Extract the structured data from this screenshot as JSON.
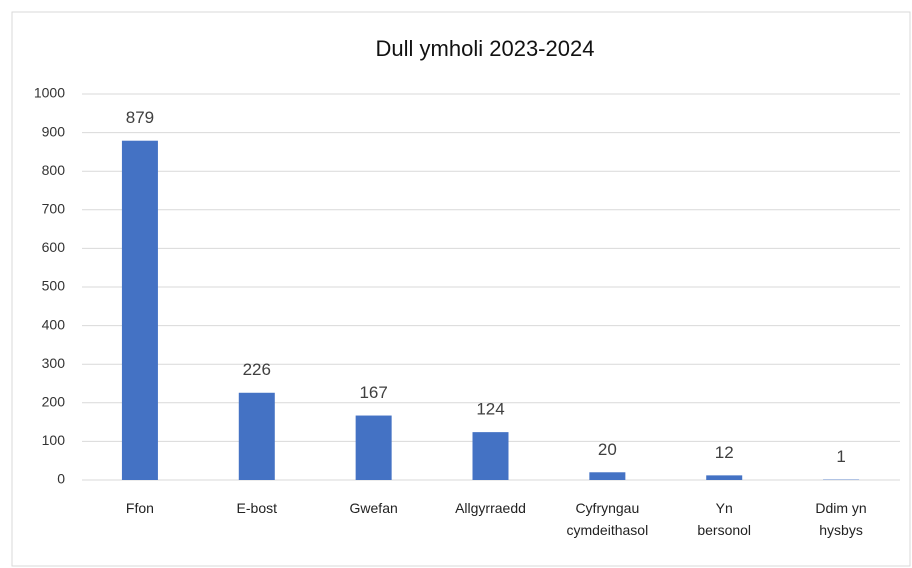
{
  "chart_data": {
    "type": "bar",
    "title": "Dull ymholi 2023-2024",
    "categories": [
      "Ffon",
      "E-bost",
      "Gwefan",
      "Allgyrraedd",
      "Cyfryngau cymdeithasol",
      "Yn bersonol",
      "Ddim yn hysbys"
    ],
    "values": [
      879,
      226,
      167,
      124,
      20,
      12,
      1
    ],
    "color": "#4472c4",
    "ylim": [
      0,
      1000
    ],
    "yticks": [
      0,
      100,
      200,
      300,
      400,
      500,
      600,
      700,
      800,
      900,
      1000
    ],
    "grid": true
  }
}
